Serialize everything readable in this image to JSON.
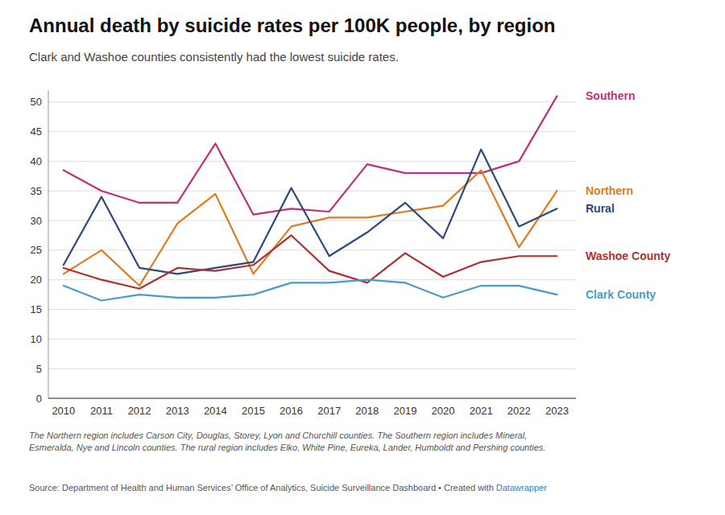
{
  "chart_data": {
    "type": "line",
    "title": "Annual death by suicide rates per 100K people, by region",
    "subtitle": "Clark and Washoe counties consistently had the lowest suicide rates.",
    "note": "The Northern region includes Carson City, Douglas, Storey, Lyon and Churchill counties. The Southern region includes Mineral,\nEsmeralda, Nye and Lincoln counties. The rural region includes Elko, White Pine, Eureka, Lander, Humboldt and Pershing counties.",
    "source": "Source: Department of Health and Human Services’ Office of Analytics, Suicide Surveillance Dashboard • Created with ",
    "source_link": "Datawrapper",
    "x": [
      2010,
      2011,
      2012,
      2013,
      2014,
      2015,
      2016,
      2017,
      2018,
      2019,
      2020,
      2021,
      2022,
      2023
    ],
    "series": [
      {
        "name": "Southern",
        "color": "#c0307a",
        "values": [
          38.5,
          35.0,
          33.0,
          33.0,
          43.0,
          31.0,
          32.0,
          31.5,
          39.5,
          38.0,
          38.0,
          38.0,
          40.0,
          51.0
        ]
      },
      {
        "name": "Northern",
        "color": "#e07b20",
        "values": [
          21.0,
          25.0,
          19.0,
          29.5,
          34.5,
          21.0,
          29.0,
          30.5,
          30.5,
          31.5,
          32.5,
          38.5,
          25.5,
          35.0
        ]
      },
      {
        "name": "Rural",
        "color": "#2c4a7c",
        "values": [
          22.5,
          34.0,
          22.0,
          21.0,
          22.0,
          23.0,
          35.5,
          24.0,
          28.0,
          33.0,
          27.0,
          42.0,
          29.0,
          32.0
        ]
      },
      {
        "name": "Washoe County",
        "color": "#b03030",
        "values": [
          22.0,
          20.0,
          18.5,
          22.0,
          21.5,
          22.5,
          27.5,
          21.5,
          19.5,
          24.5,
          20.5,
          23.0,
          24.0,
          24.0
        ]
      },
      {
        "name": "Clark County",
        "color": "#4a9cc8",
        "values": [
          19.0,
          16.5,
          17.5,
          17.0,
          17.0,
          17.5,
          19.5,
          19.5,
          20.0,
          19.5,
          17.0,
          19.0,
          19.0,
          17.5
        ]
      }
    ],
    "xlim": [
      2009.6,
      2023.5
    ],
    "xticks": [
      2010,
      2011,
      2012,
      2013,
      2014,
      2015,
      2016,
      2017,
      2018,
      2019,
      2020,
      2021,
      2022,
      2023
    ],
    "ylim": [
      0,
      52
    ],
    "yticks": [
      0,
      5,
      10,
      15,
      20,
      25,
      30,
      35,
      40,
      45,
      50
    ],
    "grid": true
  }
}
